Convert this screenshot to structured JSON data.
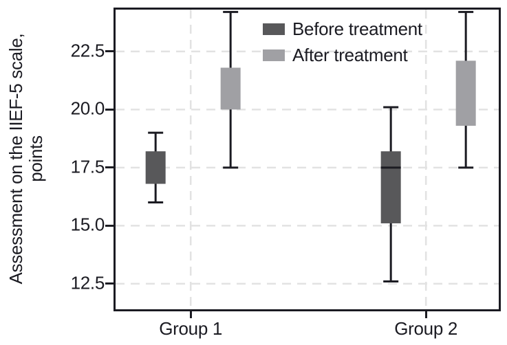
{
  "figure": {
    "background": "#ffffff",
    "ink_color": "#1b1b22",
    "grid_color": "#e2e2e2"
  },
  "chart_data": {
    "type": "boxplot",
    "title": "",
    "ylabel": "Assessment on the IIEF-5 scale,\npoints",
    "xlabel": "",
    "categories": [
      "Group 1",
      "Group 2"
    ],
    "ytick_labels": [
      "22.5",
      "20.0",
      "17.5",
      "15.0",
      "12.5"
    ],
    "ytick_values": [
      22.5,
      20.0,
      17.5,
      15.0,
      12.5
    ],
    "ylim": [
      11.4,
      24.3
    ],
    "grid": {
      "horizontal": true,
      "vertical": true,
      "style": "dashed"
    },
    "legend_position": "top-right-inside",
    "series": [
      {
        "name": "Before treatment",
        "color": "#58585a",
        "boxes": [
          {
            "category": "Group 1",
            "whisker_low": 16.0,
            "q1": 16.8,
            "median": null,
            "q3": 18.2,
            "whisker_high": 19.0
          },
          {
            "category": "Group 2",
            "whisker_low": 12.6,
            "q1": 15.1,
            "median": 17.5,
            "q3": 18.2,
            "whisker_high": 20.1
          }
        ]
      },
      {
        "name": "After treatment",
        "color": "#a0a0a4",
        "boxes": [
          {
            "category": "Group 1",
            "whisker_low": 17.5,
            "q1": 20.0,
            "median": null,
            "q3": 21.8,
            "whisker_high": 24.2
          },
          {
            "category": "Group 2",
            "whisker_low": 17.5,
            "q1": 19.3,
            "median": null,
            "q3": 22.1,
            "whisker_high": 24.2
          }
        ]
      }
    ]
  }
}
